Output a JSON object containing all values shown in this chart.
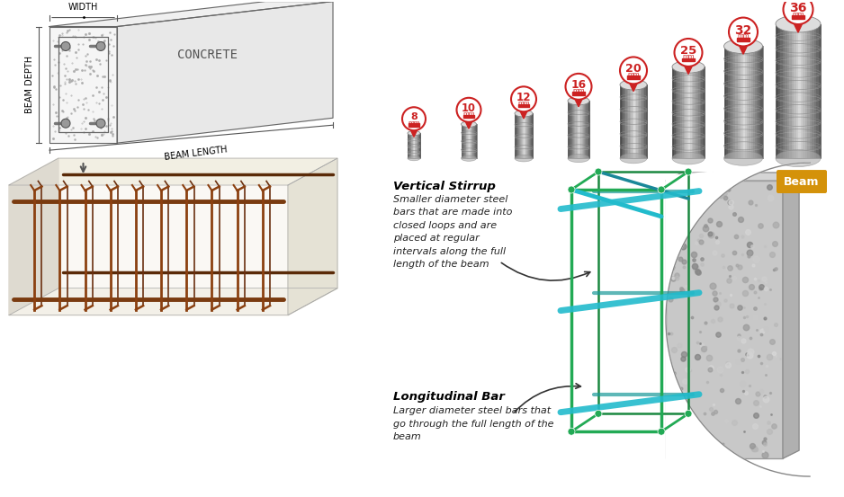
{
  "background_color": "#ffffff",
  "top_left_labels": {
    "width": "WIDTH",
    "depth": "BEAM DEPTH",
    "length": "BEAM LENGTH",
    "concrete": "CONCRETE"
  },
  "bar_sizes_num": [
    "8",
    "10",
    "12",
    "16",
    "20",
    "25",
    "32",
    "36"
  ],
  "vertical_stirrup": {
    "title": "Vertical Stirrup",
    "description": "Smaller diameter steel\nbars that are made into\nclosed loops and are\nplaced at regular\nintervals along the full\nlength of the beam"
  },
  "longitudinal_bar": {
    "title": "Longitudinal Bar",
    "description": "Larger diameter steel bars that\ngo through the full length of the\nbeam"
  },
  "beam_label": "Beam",
  "pin_color": "#cc2222",
  "pin_fill": "#ffffff",
  "beam_label_bg": "#d4920a",
  "beam_label_color": "#ffffff",
  "stirrup_color": "#22aa55",
  "longbar_color": "#22bbcc",
  "arrow_color": "#333333",
  "concrete_color": "#c8c8c8",
  "concrete_dark": "#a0a0a0"
}
